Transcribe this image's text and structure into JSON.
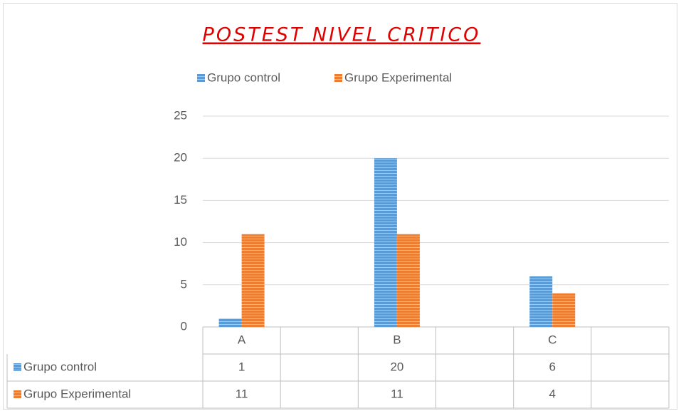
{
  "chart_data": {
    "type": "bar",
    "title": "POSTEST NIVEL CRITICO",
    "categories": [
      "A",
      null,
      "B",
      null,
      "C",
      null
    ],
    "series": [
      {
        "name": "Grupo control",
        "color": "#5b9bd5",
        "values": [
          1,
          null,
          20,
          null,
          6,
          null
        ]
      },
      {
        "name": "Grupo Experimental",
        "color": "#ed7d31",
        "values": [
          11,
          null,
          11,
          null,
          4,
          null
        ]
      }
    ],
    "ylim": [
      0,
      25
    ],
    "yticks": [
      0,
      5,
      10,
      15,
      20,
      25
    ],
    "grid": true,
    "legend": "top",
    "data_table": true
  }
}
